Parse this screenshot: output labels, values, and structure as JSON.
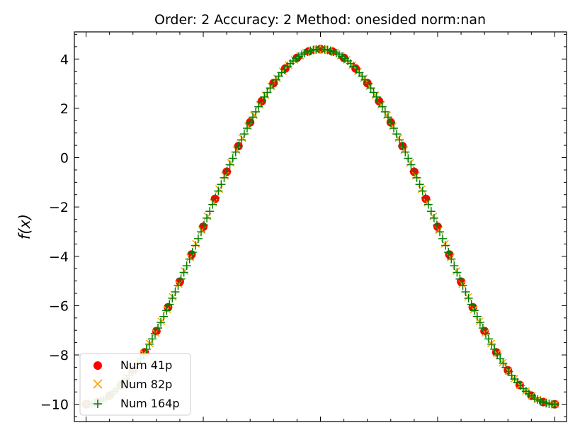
{
  "chart_data": {
    "type": "scatter",
    "title": "Order: 2 Accuracy: 2 Method: onesided norm:nan",
    "xlabel": "",
    "ylabel": "f(x)",
    "xlim": [
      -1.05,
      1.05
    ],
    "ylim": [
      -10.7,
      5.1
    ],
    "yticks": [
      4,
      2,
      0,
      -2,
      -4,
      -6,
      -8,
      -10
    ],
    "ytick_labels": [
      "4",
      "2",
      "0",
      "−2",
      "−4",
      "−6",
      "−8",
      "−10"
    ],
    "xtick_labels": [],
    "grid": false,
    "legend_position": "lower-left",
    "function": {
      "description": "curve sampled on [-1, 1]",
      "form": "y = 4.4 - 14.4 * (1 - cos(pi*x)) / 2",
      "ymax": 4.4,
      "ymin": -10.0
    },
    "series": [
      {
        "name": "Num 41p",
        "points": 41,
        "marker": "circle",
        "color": "#ff0000"
      },
      {
        "name": "Num 82p",
        "points": 82,
        "marker": "x",
        "color": "#ffa500"
      },
      {
        "name": "Num 164p",
        "points": 164,
        "marker": "plus",
        "color": "#008000"
      }
    ]
  }
}
